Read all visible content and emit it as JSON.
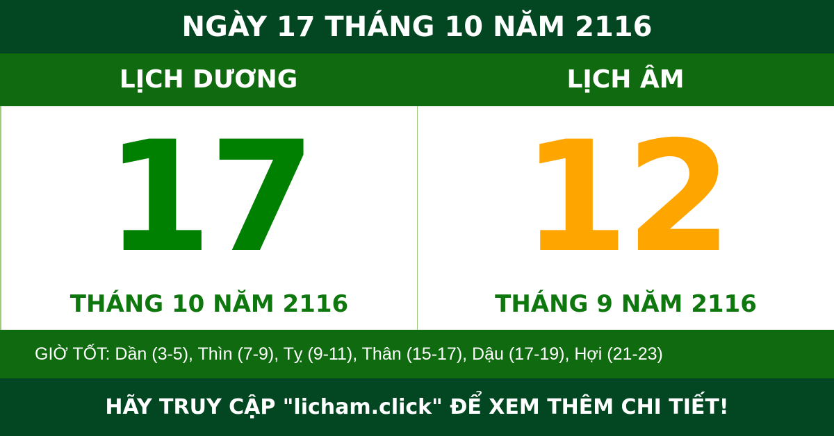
{
  "title": "NGÀY 17 THÁNG 10 NĂM 2116",
  "solar": {
    "heading": "LỊCH DƯƠNG",
    "day": "17",
    "month_year": "THÁNG 10 NĂM 2116",
    "color": "#008000"
  },
  "lunar": {
    "heading": "LỊCH ÂM",
    "day": "12",
    "month_year": "THÁNG 9 NĂM 2116",
    "color": "#ffa500"
  },
  "good_hours": "GIỜ TỐT: Dần (3-5), Thìn (7-9), Tỵ (9-11), Thân (15-17), Dậu (17-19), Hợi (21-23)",
  "footer": "HÃY TRUY CẬP \"licham.click\" ĐỂ XEM THÊM CHI TIẾT!",
  "colors": {
    "dark_green": "#034722",
    "green": "#106b10"
  }
}
